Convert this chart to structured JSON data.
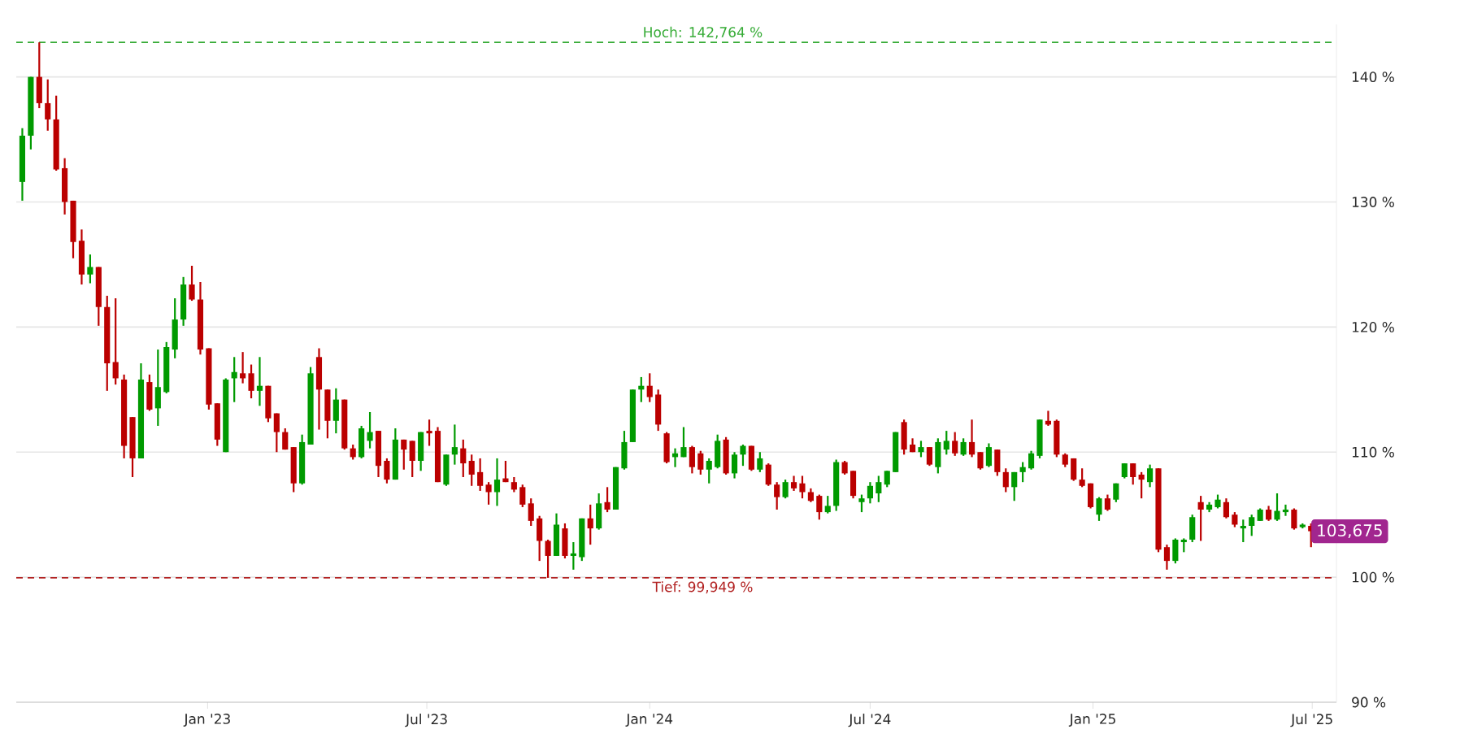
{
  "chart_data": {
    "type": "candlestick",
    "x": [
      "2022-08-01",
      "2022-08-08",
      "2022-08-15",
      "2022-08-22",
      "2022-08-29",
      "2022-09-05",
      "2022-09-12",
      "2022-09-19",
      "2022-09-26",
      "2022-10-03",
      "2022-10-10",
      "2022-10-17",
      "2022-10-24",
      "2022-10-31",
      "2022-11-07",
      "2022-11-14",
      "2022-11-21",
      "2022-11-28",
      "2022-12-05",
      "2022-12-12",
      "2022-12-19",
      "2022-12-26",
      "2023-01-02",
      "2023-01-09",
      "2023-01-16",
      "2023-01-23",
      "2023-01-30",
      "2023-02-06",
      "2023-02-13",
      "2023-02-20",
      "2023-02-27",
      "2023-03-06",
      "2023-03-13",
      "2023-03-20",
      "2023-03-27",
      "2023-04-03",
      "2023-04-10",
      "2023-04-17",
      "2023-04-24",
      "2023-05-01",
      "2023-05-08",
      "2023-05-15",
      "2023-05-22",
      "2023-05-29",
      "2023-06-05",
      "2023-06-12",
      "2023-06-19",
      "2023-06-26",
      "2023-07-03",
      "2023-07-10",
      "2023-07-17",
      "2023-07-24",
      "2023-07-31",
      "2023-08-07",
      "2023-08-14",
      "2023-08-21",
      "2023-08-28",
      "2023-09-04",
      "2023-09-11",
      "2023-09-18",
      "2023-09-25",
      "2023-10-02",
      "2023-10-09",
      "2023-10-16",
      "2023-10-23",
      "2023-10-30",
      "2023-11-06",
      "2023-11-13",
      "2023-11-20",
      "2023-11-27",
      "2023-12-04",
      "2023-12-11",
      "2023-12-18",
      "2023-12-25",
      "2024-01-01",
      "2024-01-08",
      "2024-01-15",
      "2024-01-22",
      "2024-01-29",
      "2024-02-05",
      "2024-02-12",
      "2024-02-19",
      "2024-02-26",
      "2024-03-04",
      "2024-03-11",
      "2024-03-18",
      "2024-03-25",
      "2024-04-01",
      "2024-04-08",
      "2024-04-15",
      "2024-04-22",
      "2024-04-29",
      "2024-05-06",
      "2024-05-13",
      "2024-05-20",
      "2024-05-27",
      "2024-06-03",
      "2024-06-10",
      "2024-06-17",
      "2024-06-24",
      "2024-07-01",
      "2024-07-08",
      "2024-07-15",
      "2024-07-22",
      "2024-07-29",
      "2024-08-05",
      "2024-08-12",
      "2024-08-19",
      "2024-08-26",
      "2024-09-02",
      "2024-09-09",
      "2024-09-16",
      "2024-09-23",
      "2024-09-30",
      "2024-10-07",
      "2024-10-14",
      "2024-10-21",
      "2024-10-28",
      "2024-11-04",
      "2024-11-11",
      "2024-11-18",
      "2024-11-25",
      "2024-12-02",
      "2024-12-09",
      "2024-12-16",
      "2024-12-23",
      "2024-12-30",
      "2025-01-06",
      "2025-01-13",
      "2025-01-20",
      "2025-01-27",
      "2025-02-03",
      "2025-02-10",
      "2025-02-17",
      "2025-02-24",
      "2025-03-03",
      "2025-03-10",
      "2025-03-17",
      "2025-03-24",
      "2025-03-31",
      "2025-04-07",
      "2025-04-14",
      "2025-04-21",
      "2025-04-28",
      "2025-05-05",
      "2025-05-12",
      "2025-05-19",
      "2025-05-26",
      "2025-06-02",
      "2025-06-09",
      "2025-06-16",
      "2025-06-23",
      "2025-06-30"
    ],
    "ohlc": [
      [
        131.6,
        135.9,
        130.1,
        135.3
      ],
      [
        135.3,
        140.0,
        134.2,
        140.0
      ],
      [
        140.0,
        142.764,
        137.5,
        137.9
      ],
      [
        137.9,
        139.8,
        135.7,
        136.6
      ],
      [
        136.6,
        138.5,
        132.5,
        132.6
      ],
      [
        132.7,
        133.5,
        129.0,
        130.0
      ],
      [
        130.1,
        130.1,
        125.5,
        126.8
      ],
      [
        126.9,
        127.8,
        123.4,
        124.2
      ],
      [
        124.2,
        125.8,
        123.5,
        124.8
      ],
      [
        124.8,
        124.8,
        120.1,
        121.6
      ],
      [
        121.6,
        122.5,
        114.9,
        117.1
      ],
      [
        117.2,
        122.3,
        115.4,
        115.9
      ],
      [
        115.8,
        116.2,
        109.5,
        110.5
      ],
      [
        112.8,
        112.8,
        108.0,
        109.5
      ],
      [
        109.5,
        117.1,
        109.5,
        115.8
      ],
      [
        115.6,
        116.2,
        113.3,
        113.4
      ],
      [
        113.5,
        118.2,
        112.1,
        115.2
      ],
      [
        114.8,
        118.8,
        114.7,
        118.4
      ],
      [
        118.2,
        122.3,
        117.5,
        120.6
      ],
      [
        120.6,
        124.0,
        120.1,
        123.4
      ],
      [
        123.4,
        124.9,
        122.1,
        122.2
      ],
      [
        122.2,
        123.6,
        117.8,
        118.2
      ],
      [
        118.3,
        118.3,
        113.4,
        113.8
      ],
      [
        113.9,
        113.9,
        110.5,
        111.0
      ],
      [
        110.0,
        115.9,
        110.0,
        115.8
      ],
      [
        115.9,
        117.6,
        114.0,
        116.4
      ],
      [
        116.3,
        118.0,
        115.5,
        115.9
      ],
      [
        116.3,
        117.0,
        114.3,
        114.9
      ],
      [
        114.9,
        117.6,
        113.7,
        115.3
      ],
      [
        115.3,
        115.3,
        112.4,
        112.7
      ],
      [
        113.1,
        113.1,
        110.0,
        111.6
      ],
      [
        111.6,
        111.9,
        110.2,
        110.2
      ],
      [
        110.4,
        110.4,
        106.8,
        107.5
      ],
      [
        107.5,
        111.4,
        107.4,
        110.8
      ],
      [
        110.6,
        116.8,
        110.6,
        116.3
      ],
      [
        117.6,
        118.3,
        111.8,
        115.0
      ],
      [
        115.0,
        115.0,
        111.1,
        112.5
      ],
      [
        112.5,
        115.1,
        111.5,
        114.2
      ],
      [
        114.2,
        114.2,
        110.2,
        110.3
      ],
      [
        110.3,
        110.6,
        109.4,
        109.6
      ],
      [
        109.6,
        112.1,
        109.5,
        111.9
      ],
      [
        110.9,
        113.2,
        110.3,
        111.6
      ],
      [
        111.7,
        111.7,
        108.0,
        108.9
      ],
      [
        109.3,
        109.5,
        107.5,
        107.8
      ],
      [
        107.8,
        111.9,
        107.8,
        111.0
      ],
      [
        111.0,
        111.0,
        108.6,
        110.2
      ],
      [
        110.9,
        110.9,
        108.0,
        109.3
      ],
      [
        109.3,
        111.6,
        108.5,
        111.6
      ],
      [
        111.7,
        112.6,
        110.5,
        111.5
      ],
      [
        111.7,
        112.0,
        107.6,
        107.6
      ],
      [
        107.4,
        109.8,
        107.3,
        109.8
      ],
      [
        109.8,
        112.2,
        109.0,
        110.4
      ],
      [
        110.3,
        111.0,
        108.0,
        109.1
      ],
      [
        109.3,
        109.8,
        107.3,
        108.2
      ],
      [
        108.4,
        109.5,
        106.9,
        107.3
      ],
      [
        107.4,
        107.6,
        105.8,
        106.8
      ],
      [
        106.8,
        109.5,
        105.7,
        107.8
      ],
      [
        107.9,
        109.3,
        107.6,
        107.6
      ],
      [
        107.6,
        108.0,
        106.8,
        107.0
      ],
      [
        107.2,
        107.4,
        105.6,
        105.8
      ],
      [
        105.9,
        106.3,
        104.1,
        104.5
      ],
      [
        104.7,
        104.9,
        101.3,
        102.9
      ],
      [
        102.9,
        103.0,
        99.949,
        101.7
      ],
      [
        101.7,
        105.1,
        101.7,
        104.2
      ],
      [
        103.9,
        104.3,
        101.5,
        101.7
      ],
      [
        101.7,
        102.8,
        100.6,
        101.9
      ],
      [
        101.6,
        104.7,
        101.3,
        104.7
      ],
      [
        104.7,
        105.8,
        102.6,
        103.9
      ],
      [
        103.9,
        106.7,
        103.8,
        105.9
      ],
      [
        106.0,
        107.2,
        105.2,
        105.4
      ],
      [
        105.4,
        108.8,
        105.4,
        108.8
      ],
      [
        108.7,
        111.7,
        108.6,
        110.8
      ],
      [
        110.8,
        115.0,
        110.8,
        115.0
      ],
      [
        115.0,
        116.0,
        114.0,
        115.3
      ],
      [
        115.3,
        116.3,
        114.0,
        114.4
      ],
      [
        114.6,
        115.0,
        111.7,
        112.2
      ],
      [
        111.5,
        111.6,
        109.1,
        109.2
      ],
      [
        109.6,
        110.3,
        108.8,
        109.9
      ],
      [
        109.6,
        112.0,
        109.6,
        110.4
      ],
      [
        110.4,
        110.5,
        108.3,
        108.8
      ],
      [
        109.9,
        110.1,
        108.2,
        108.6
      ],
      [
        108.6,
        109.5,
        107.5,
        109.3
      ],
      [
        108.8,
        111.4,
        108.7,
        110.9
      ],
      [
        111.0,
        111.2,
        108.2,
        108.3
      ],
      [
        108.3,
        110.0,
        107.9,
        109.8
      ],
      [
        109.8,
        110.6,
        108.9,
        110.5
      ],
      [
        110.5,
        110.5,
        108.5,
        108.6
      ],
      [
        108.6,
        110.0,
        108.4,
        109.5
      ],
      [
        109.0,
        109.1,
        107.3,
        107.4
      ],
      [
        107.4,
        107.6,
        105.4,
        106.4
      ],
      [
        106.4,
        107.8,
        106.3,
        107.6
      ],
      [
        107.6,
        108.1,
        106.9,
        107.1
      ],
      [
        107.5,
        108.1,
        106.3,
        106.8
      ],
      [
        106.8,
        107.1,
        106.0,
        106.1
      ],
      [
        106.5,
        106.6,
        104.6,
        105.2
      ],
      [
        105.2,
        106.5,
        105.1,
        105.7
      ],
      [
        105.7,
        109.4,
        105.3,
        109.2
      ],
      [
        109.2,
        109.3,
        108.2,
        108.3
      ],
      [
        108.5,
        108.5,
        106.3,
        106.5
      ],
      [
        106.0,
        106.6,
        105.2,
        106.3
      ],
      [
        106.3,
        107.6,
        105.9,
        107.3
      ],
      [
        106.7,
        108.1,
        106.0,
        107.6
      ],
      [
        107.4,
        108.5,
        107.2,
        108.5
      ],
      [
        108.4,
        111.6,
        108.4,
        111.6
      ],
      [
        112.4,
        112.6,
        109.8,
        110.2
      ],
      [
        110.6,
        111.1,
        110.0,
        110.0
      ],
      [
        110.0,
        110.9,
        109.6,
        110.4
      ],
      [
        110.4,
        110.4,
        108.9,
        109.0
      ],
      [
        108.8,
        111.1,
        108.3,
        110.8
      ],
      [
        110.2,
        111.7,
        109.8,
        110.9
      ],
      [
        110.9,
        111.6,
        109.7,
        109.9
      ],
      [
        109.8,
        111.1,
        109.7,
        110.8
      ],
      [
        110.8,
        112.6,
        109.6,
        109.8
      ],
      [
        110.0,
        110.0,
        108.6,
        108.7
      ],
      [
        108.9,
        110.7,
        108.8,
        110.4
      ],
      [
        110.2,
        110.2,
        108.1,
        108.4
      ],
      [
        108.4,
        108.7,
        106.8,
        107.2
      ],
      [
        107.2,
        108.4,
        106.1,
        108.4
      ],
      [
        108.4,
        109.2,
        107.6,
        108.8
      ],
      [
        108.7,
        110.1,
        108.6,
        109.9
      ],
      [
        109.7,
        112.6,
        109.5,
        112.6
      ],
      [
        112.5,
        113.3,
        112.1,
        112.2
      ],
      [
        112.5,
        112.6,
        109.6,
        109.8
      ],
      [
        109.8,
        109.9,
        108.8,
        109.0
      ],
      [
        109.5,
        109.5,
        107.7,
        107.8
      ],
      [
        107.8,
        108.7,
        107.2,
        107.3
      ],
      [
        107.5,
        107.5,
        105.5,
        105.6
      ],
      [
        105.0,
        106.4,
        104.5,
        106.3
      ],
      [
        106.3,
        106.6,
        105.3,
        105.4
      ],
      [
        106.2,
        107.5,
        106.0,
        107.5
      ],
      [
        108.0,
        109.1,
        107.9,
        109.1
      ],
      [
        109.1,
        109.1,
        107.4,
        108.0
      ],
      [
        108.2,
        108.4,
        106.3,
        107.8
      ],
      [
        107.6,
        109.0,
        107.2,
        108.7
      ],
      [
        108.7,
        108.7,
        102.0,
        102.2
      ],
      [
        102.4,
        102.6,
        100.6,
        101.3
      ],
      [
        101.3,
        103.1,
        101.1,
        103.0
      ],
      [
        102.8,
        103.1,
        102.0,
        103.0
      ],
      [
        103.0,
        105.0,
        102.8,
        104.8
      ],
      [
        106.0,
        106.5,
        102.9,
        105.4
      ],
      [
        105.4,
        106.0,
        105.2,
        105.8
      ],
      [
        105.6,
        106.6,
        105.5,
        106.2
      ],
      [
        106.0,
        106.3,
        104.7,
        104.8
      ],
      [
        105.0,
        105.2,
        104.0,
        104.2
      ],
      [
        103.9,
        104.6,
        102.8,
        104.1
      ],
      [
        104.1,
        105.0,
        103.3,
        104.8
      ],
      [
        104.5,
        105.5,
        104.5,
        105.4
      ],
      [
        105.4,
        105.7,
        104.5,
        104.6
      ],
      [
        104.6,
        106.7,
        104.5,
        105.3
      ],
      [
        105.2,
        105.8,
        104.9,
        105.4
      ],
      [
        105.4,
        105.5,
        103.8,
        103.9
      ],
      [
        104.0,
        104.3,
        103.9,
        104.2
      ],
      [
        104.1,
        104.3,
        102.4,
        103.675
      ]
    ],
    "xlim": [
      "2022-07-27",
      "2025-07-21"
    ],
    "xticks": [
      {
        "value": "2023-01-01",
        "label": "Jan '23"
      },
      {
        "value": "2023-07-01",
        "label": "Jul '23"
      },
      {
        "value": "2024-01-01",
        "label": "Jan '24"
      },
      {
        "value": "2024-07-01",
        "label": "Jul '24"
      },
      {
        "value": "2025-01-01",
        "label": "Jan '25"
      },
      {
        "value": "2025-07-01",
        "label": "Jul '25"
      }
    ],
    "ylim": [
      90,
      144.2
    ],
    "yticks": [
      {
        "value": 90,
        "label": "90 %"
      },
      {
        "value": 100,
        "label": "100 %"
      },
      {
        "value": 110,
        "label": "110 %"
      },
      {
        "value": 120,
        "label": "120 %"
      },
      {
        "value": 130,
        "label": "130 %"
      },
      {
        "value": 140,
        "label": "140 %"
      }
    ],
    "grid": "y",
    "ref_lines": [
      {
        "axis": "y",
        "value": 142.764,
        "label": "Hoch: 142,764 %",
        "color": "#33aa33",
        "line_style": "dashed"
      },
      {
        "axis": "y",
        "value": 99.949,
        "label": "Tief: 99,949 %",
        "color": "#b22222",
        "line_style": "dashed"
      }
    ],
    "annotations": [
      {
        "text": "103,675",
        "x": "2025-06-30",
        "y": 103.675
      }
    ]
  }
}
